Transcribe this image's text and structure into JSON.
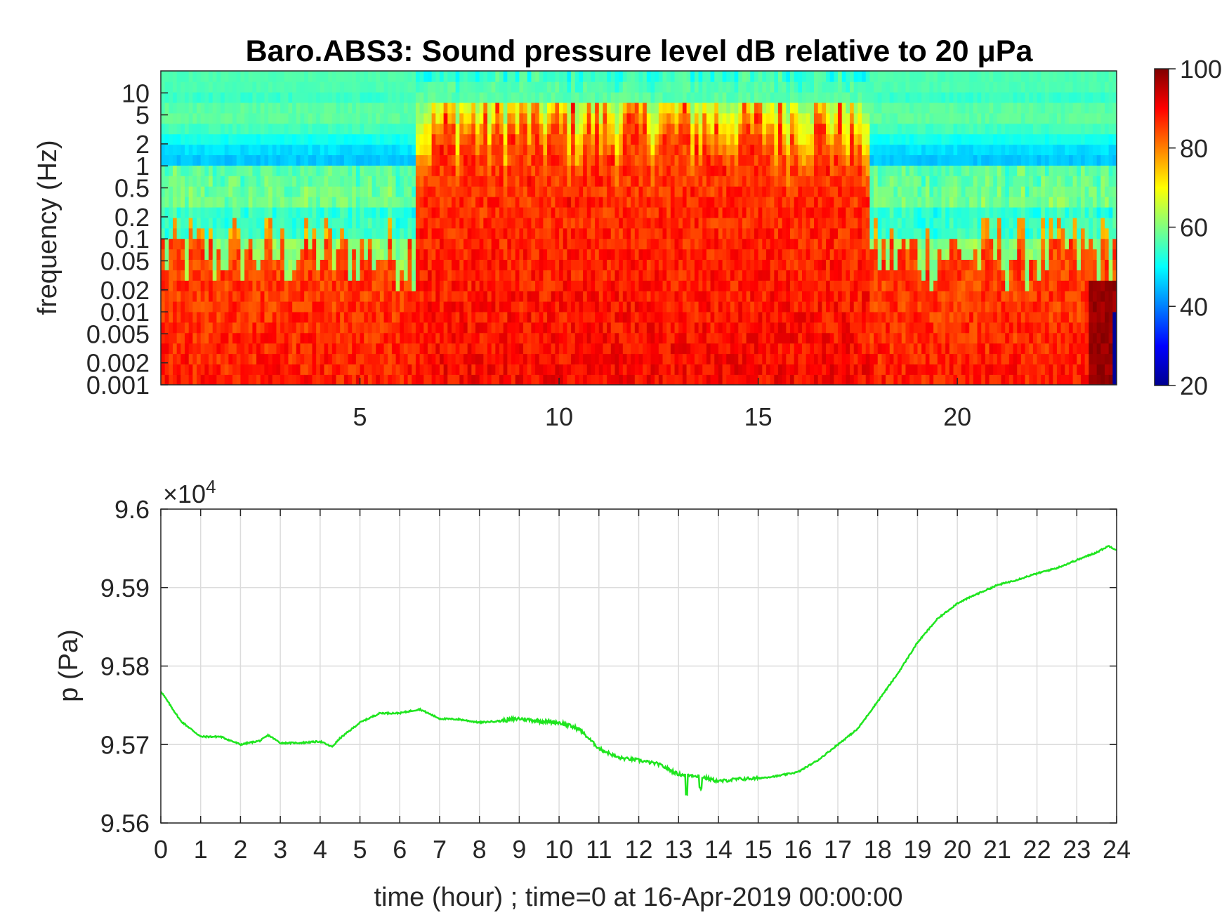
{
  "chart_data": [
    {
      "type": "heatmap",
      "title": "Baro.ABS3: Sound pressure level dB relative to 20 μPa",
      "xlabel": "",
      "ylabel": "frequency (Hz)",
      "x_ticks": [
        "5",
        "10",
        "15",
        "20"
      ],
      "y_ticks": [
        "10",
        "5",
        "2",
        "1",
        "0.5",
        "0.2",
        "0.1",
        "0.05",
        "0.02",
        "0.01",
        "0.005",
        "0.002",
        "0.001"
      ],
      "xlim": [
        0,
        24
      ],
      "ylim": [
        0.001,
        20
      ],
      "y_scale": "log",
      "colormap": "jet",
      "colorbar": {
        "range": [
          20,
          100
        ],
        "ticks": [
          "100",
          "80",
          "60",
          "40",
          "20"
        ]
      },
      "description_quiet_hours": [
        [
          0,
          6.4
        ],
        [
          17.8,
          24
        ]
      ],
      "loud_hours": [
        6.4,
        17.8
      ]
    },
    {
      "type": "line",
      "title": "",
      "xlabel": "time (hour) ; time=0 at 16-Apr-2019 00:00:00",
      "ylabel": "p (Pa)",
      "exponent_label": "×10",
      "exponent_power": "4",
      "xlim": [
        0,
        24
      ],
      "ylim": [
        9.56,
        9.6
      ],
      "x_ticks": [
        "0",
        "1",
        "2",
        "3",
        "4",
        "5",
        "6",
        "7",
        "8",
        "9",
        "10",
        "11",
        "12",
        "13",
        "14",
        "15",
        "16",
        "17",
        "18",
        "19",
        "20",
        "21",
        "22",
        "23",
        "24"
      ],
      "y_ticks": [
        "9.6",
        "9.59",
        "9.58",
        "9.57",
        "9.56"
      ],
      "grid": true,
      "line_color": "#1fe51f",
      "series": [
        {
          "x": [
            0,
            0.5,
            1,
            1.5,
            2,
            2.5,
            2.7,
            3,
            3.5,
            4,
            4.3,
            4.5,
            5,
            5.5,
            6,
            6.5,
            7,
            7.5,
            8,
            8.5,
            9,
            9.5,
            10,
            10.5,
            11,
            11.5,
            12,
            12.5,
            13,
            13.5,
            14,
            14.5,
            15,
            15.5,
            16,
            16.5,
            17,
            17.5,
            18,
            18.5,
            19,
            19.5,
            20,
            20.5,
            21,
            21.5,
            22,
            22.5,
            23,
            23.5,
            23.8,
            24
          ],
          "y": [
            9.5768,
            9.573,
            9.571,
            9.571,
            9.57,
            9.5705,
            9.5712,
            9.5702,
            9.5702,
            9.5704,
            9.5697,
            9.5708,
            9.5728,
            9.574,
            9.574,
            9.5745,
            9.5733,
            9.5732,
            9.5728,
            9.573,
            9.5733,
            9.573,
            9.5728,
            9.572,
            9.5695,
            9.5683,
            9.568,
            9.5675,
            9.5662,
            9.566,
            9.5653,
            9.5656,
            9.5657,
            9.566,
            9.5665,
            9.568,
            9.57,
            9.572,
            9.5755,
            9.579,
            9.583,
            9.586,
            9.588,
            9.5892,
            9.5903,
            9.591,
            9.5918,
            9.5925,
            9.5935,
            9.5945,
            9.5953,
            9.5948
          ]
        }
      ]
    }
  ]
}
